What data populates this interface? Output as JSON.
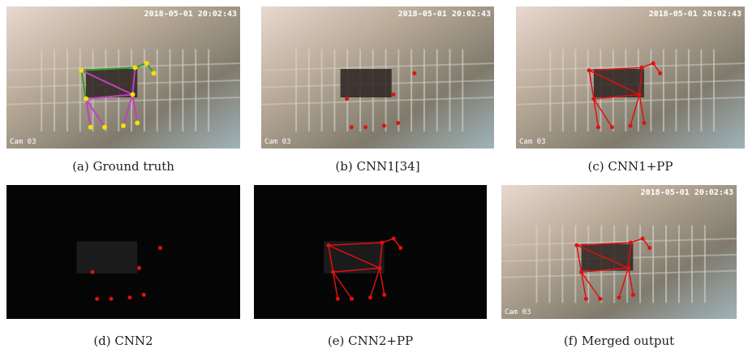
{
  "panels": [
    {
      "caption": "(a) Ground truth",
      "timestamp": "2018-05-01 20:02:43",
      "camera": "Cam 03"
    },
    {
      "caption": "(b) CNN1[34]",
      "timestamp": "2018-05-01 20:02:43",
      "camera": "Cam 03"
    },
    {
      "caption": "(c) CNN1+PP",
      "timestamp": "2018-05-01 20:02:43",
      "camera": "Cam 03"
    },
    {
      "caption": "(d) CNN2"
    },
    {
      "caption": "(e) CNN2+PP"
    },
    {
      "caption": "(f) Merged output",
      "timestamp": "2018-05-01 20:02:43",
      "camera": "Cam 03"
    }
  ]
}
